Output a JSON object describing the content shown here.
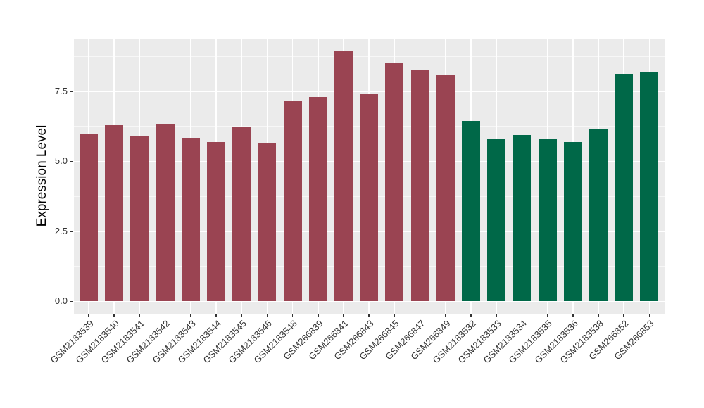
{
  "chart_data": {
    "type": "bar",
    "title": "",
    "xlabel": "",
    "ylabel": "Expression Level",
    "ylim": [
      -0.45,
      9.39
    ],
    "yticks": [
      0.0,
      2.5,
      5.0,
      7.5
    ],
    "ytick_labels": [
      "0.0",
      "2.5",
      "5.0",
      "7.5"
    ],
    "minor_gridlines": [
      1.25,
      3.75,
      6.25,
      8.75
    ],
    "grid": true,
    "legend_position": "none",
    "categories": [
      "GSM2183539",
      "GSM2183540",
      "GSM2183541",
      "GSM2183542",
      "GSM2183543",
      "GSM2183544",
      "GSM2183545",
      "GSM2183546",
      "GSM2183548",
      "GSM266839",
      "GSM266841",
      "GSM266843",
      "GSM266845",
      "GSM266847",
      "GSM266849",
      "GSM2183532",
      "GSM2183533",
      "GSM2183534",
      "GSM2183535",
      "GSM2183536",
      "GSM2183538",
      "GSM266852",
      "GSM266853"
    ],
    "values": [
      5.97,
      6.29,
      5.88,
      6.35,
      5.83,
      5.7,
      6.23,
      5.67,
      7.18,
      7.29,
      8.93,
      7.43,
      8.52,
      8.25,
      8.08,
      6.44,
      5.78,
      5.93,
      5.8,
      5.69,
      6.16,
      8.13,
      8.17
    ],
    "groups": [
      "maroon",
      "maroon",
      "maroon",
      "maroon",
      "maroon",
      "maroon",
      "maroon",
      "maroon",
      "maroon",
      "maroon",
      "maroon",
      "maroon",
      "maroon",
      "maroon",
      "maroon",
      "green",
      "green",
      "green",
      "green",
      "green",
      "green",
      "green",
      "green"
    ],
    "group_colors": {
      "maroon": "#9A4452",
      "green": "#006848"
    },
    "colors": {
      "panel_background": "#EBEBEB",
      "gridline": "#FFFFFF",
      "axis_text": "#333333",
      "axis_title": "#000000",
      "page_background": "#FFFFFF"
    }
  }
}
